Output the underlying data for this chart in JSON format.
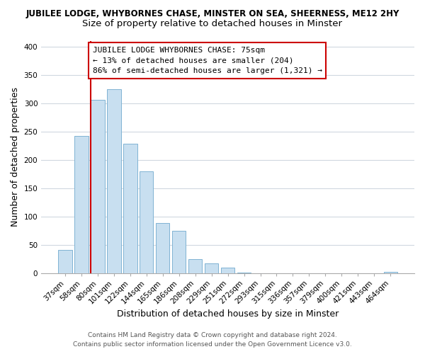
{
  "title_main": "JUBILEE LODGE, WHYBORNES CHASE, MINSTER ON SEA, SHEERNESS, ME12 2HY",
  "title_sub": "Size of property relative to detached houses in Minster",
  "xlabel": "Distribution of detached houses by size in Minster",
  "ylabel": "Number of detached properties",
  "bar_labels": [
    "37sqm",
    "58sqm",
    "80sqm",
    "101sqm",
    "122sqm",
    "144sqm",
    "165sqm",
    "186sqm",
    "208sqm",
    "229sqm",
    "251sqm",
    "272sqm",
    "293sqm",
    "315sqm",
    "336sqm",
    "357sqm",
    "379sqm",
    "400sqm",
    "421sqm",
    "443sqm",
    "464sqm"
  ],
  "bar_heights": [
    41,
    242,
    306,
    325,
    228,
    180,
    88,
    74,
    25,
    17,
    10,
    1,
    0,
    0,
    0,
    0,
    0,
    0,
    0,
    0,
    2
  ],
  "bar_color": "#c8dff0",
  "bar_edge_color": "#7fb3d3",
  "annotation_text_line1": "JUBILEE LODGE WHYBORNES CHASE: 75sqm",
  "annotation_text_line2": "← 13% of detached houses are smaller (204)",
  "annotation_text_line3": "86% of semi-detached houses are larger (1,321) →",
  "vline_color": "#cc0000",
  "annotation_box_facecolor": "#ffffff",
  "annotation_box_edgecolor": "#cc0000",
  "ylim": [
    0,
    410
  ],
  "yticks": [
    0,
    50,
    100,
    150,
    200,
    250,
    300,
    350,
    400
  ],
  "footer_line1": "Contains HM Land Registry data © Crown copyright and database right 2024.",
  "footer_line2": "Contains public sector information licensed under the Open Government Licence v3.0.",
  "background_color": "#ffffff",
  "plot_background": "#ffffff",
  "grid_color": "#d0d8e0",
  "title_fontsize": 8.5,
  "subtitle_fontsize": 9.5,
  "axis_label_fontsize": 9,
  "tick_fontsize": 7.5,
  "annotation_fontsize": 8,
  "footer_fontsize": 6.5
}
